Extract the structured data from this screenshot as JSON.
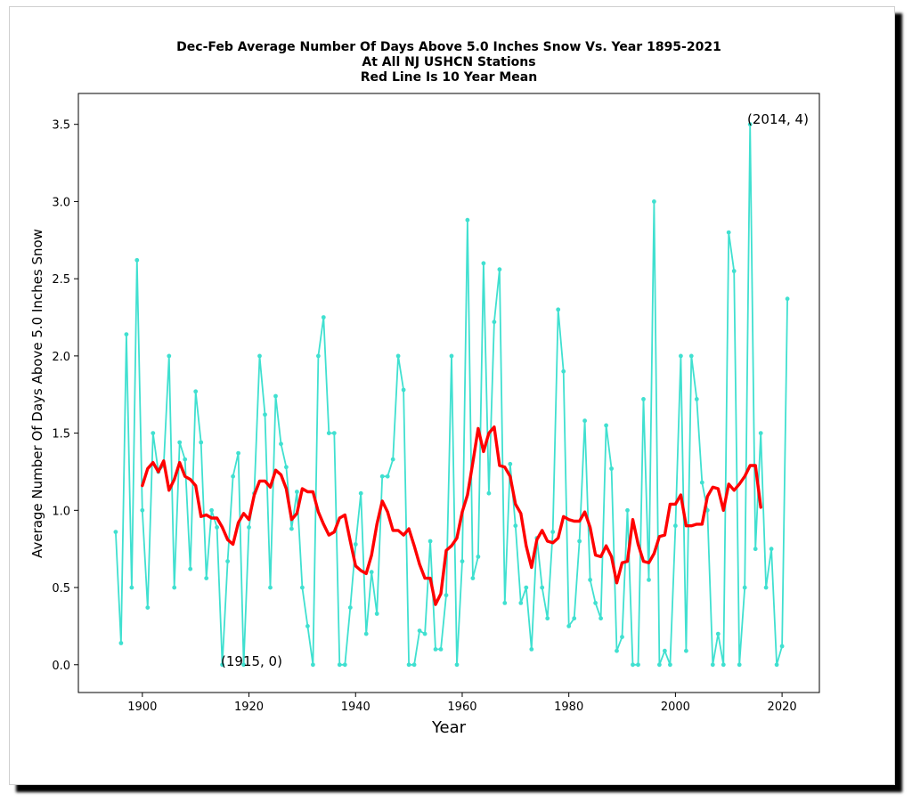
{
  "chart_data": {
    "type": "line",
    "title": [
      "Dec-Feb Average Number Of Days Above 5.0 Inches Snow Vs. Year 1895-2021",
      "At All NJ USHCN Stations",
      "Red Line Is 10 Year Mean"
    ],
    "xlabel": "Year",
    "ylabel": "Average Number Of Days Above 5.0 Inches Snow",
    "xlim": [
      1888,
      2027
    ],
    "ylim": [
      -0.18,
      3.7
    ],
    "xticks": [
      1900,
      1920,
      1940,
      1960,
      1980,
      2000,
      2020
    ],
    "yticks": [
      0.0,
      0.5,
      1.0,
      1.5,
      2.0,
      2.5,
      3.0,
      3.5
    ],
    "xtick_labels": [
      "1900",
      "1920",
      "1940",
      "1960",
      "1980",
      "2000",
      "2020"
    ],
    "ytick_labels": [
      "0.0",
      "0.5",
      "1.0",
      "1.5",
      "2.0",
      "2.5",
      "3.0",
      "3.5"
    ],
    "grid": false,
    "colors": {
      "yearly": "#40e0d0",
      "mean": "#ff0000"
    },
    "series": [
      {
        "type": "line-markers",
        "x": [
          1895,
          1896,
          1897,
          1898,
          1899,
          1900,
          1901,
          1902,
          1903,
          1904,
          1905,
          1906,
          1907,
          1908,
          1909,
          1910,
          1911,
          1912,
          1913,
          1914,
          1915,
          1916,
          1917,
          1918,
          1919,
          1920,
          1921,
          1922,
          1923,
          1924,
          1925,
          1926,
          1927,
          1928,
          1929,
          1930,
          1931,
          1932,
          1933,
          1934,
          1935,
          1936,
          1937,
          1938,
          1939,
          1940,
          1941,
          1942,
          1943,
          1944,
          1945,
          1946,
          1947,
          1948,
          1949,
          1950,
          1951,
          1952,
          1953,
          1954,
          1955,
          1956,
          1957,
          1958,
          1959,
          1960,
          1961,
          1962,
          1963,
          1964,
          1965,
          1966,
          1967,
          1968,
          1969,
          1970,
          1971,
          1972,
          1973,
          1974,
          1975,
          1976,
          1977,
          1978,
          1979,
          1980,
          1981,
          1982,
          1983,
          1984,
          1985,
          1986,
          1987,
          1988,
          1989,
          1990,
          1991,
          1992,
          1993,
          1994,
          1995,
          1996,
          1997,
          1998,
          1999,
          2000,
          2001,
          2002,
          2003,
          2004,
          2005,
          2006,
          2007,
          2008,
          2009,
          2010,
          2011,
          2012,
          2013,
          2014,
          2015,
          2016,
          2017,
          2018,
          2019,
          2020,
          2021
        ],
        "y": [
          0.86,
          0.14,
          2.14,
          0.5,
          2.62,
          1.0,
          0.37,
          1.5,
          1.25,
          1.29,
          2.0,
          0.5,
          1.44,
          1.33,
          0.62,
          1.77,
          1.44,
          0.56,
          1.0,
          0.89,
          0.0,
          0.67,
          1.22,
          1.37,
          0.0,
          0.89,
          1.11,
          2.0,
          1.62,
          0.5,
          1.74,
          1.43,
          1.28,
          0.88,
          1.12,
          0.5,
          0.25,
          0.0,
          2.0,
          2.25,
          1.5,
          1.5,
          0.0,
          0.0,
          0.37,
          0.78,
          1.11,
          0.2,
          0.6,
          0.33,
          1.22,
          1.22,
          1.33,
          2.0,
          1.78,
          0.0,
          0.0,
          0.22,
          0.2,
          0.8,
          0.1,
          0.1,
          0.45,
          2.0,
          0.0,
          0.67,
          2.88,
          0.56,
          0.7,
          2.6,
          1.11,
          2.22,
          2.56,
          0.4,
          1.3,
          0.9,
          0.4,
          0.5,
          0.1,
          0.82,
          0.5,
          0.3,
          0.86,
          2.3,
          1.9,
          0.25,
          0.3,
          0.8,
          1.58,
          0.55,
          0.4,
          0.3,
          1.55,
          1.27,
          0.09,
          0.18,
          1.0,
          0.0,
          0.0,
          1.72,
          0.55,
          3.0,
          0.0,
          0.09,
          0.0,
          0.9,
          2.0,
          0.09,
          2.0,
          1.72,
          1.18,
          1.0,
          0.0,
          0.2,
          0.0,
          2.8,
          2.55,
          0.0,
          0.5,
          3.5,
          0.75,
          1.5,
          0.5,
          0.75,
          0.0,
          0.12,
          2.37
        ]
      },
      {
        "type": "line",
        "x": [
          1900,
          1901,
          1902,
          1903,
          1904,
          1905,
          1906,
          1907,
          1908,
          1909,
          1910,
          1911,
          1912,
          1913,
          1914,
          1915,
          1916,
          1917,
          1918,
          1919,
          1920,
          1921,
          1922,
          1923,
          1924,
          1925,
          1926,
          1927,
          1928,
          1929,
          1930,
          1931,
          1932,
          1933,
          1934,
          1935,
          1936,
          1937,
          1938,
          1939,
          1940,
          1941,
          1942,
          1943,
          1944,
          1945,
          1946,
          1947,
          1948,
          1949,
          1950,
          1951,
          1952,
          1953,
          1954,
          1955,
          1956,
          1957,
          1958,
          1959,
          1960,
          1961,
          1962,
          1963,
          1964,
          1965,
          1966,
          1967,
          1968,
          1969,
          1970,
          1971,
          1972,
          1973,
          1974,
          1975,
          1976,
          1977,
          1978,
          1979,
          1980,
          1981,
          1982,
          1983,
          1984,
          1985,
          1986,
          1987,
          1988,
          1989,
          1990,
          1991,
          1992,
          1993,
          1994,
          1995,
          1996,
          1997,
          1998,
          1999,
          2000,
          2001,
          2002,
          2003,
          2004,
          2005,
          2006,
          2007,
          2008,
          2009,
          2010,
          2011,
          2012,
          2013,
          2014,
          2015,
          2016
        ],
        "y": [
          1.16,
          1.27,
          1.31,
          1.25,
          1.32,
          1.13,
          1.2,
          1.31,
          1.22,
          1.2,
          1.16,
          0.96,
          0.97,
          0.95,
          0.95,
          0.89,
          0.81,
          0.78,
          0.92,
          0.98,
          0.94,
          1.1,
          1.19,
          1.19,
          1.15,
          1.26,
          1.23,
          1.14,
          0.94,
          0.98,
          1.14,
          1.12,
          1.12,
          0.99,
          0.91,
          0.84,
          0.86,
          0.95,
          0.97,
          0.8,
          0.64,
          0.61,
          0.59,
          0.71,
          0.91,
          1.06,
          0.99,
          0.87,
          0.87,
          0.84,
          0.88,
          0.77,
          0.65,
          0.56,
          0.56,
          0.39,
          0.46,
          0.74,
          0.77,
          0.82,
          0.99,
          1.1,
          1.31,
          1.53,
          1.38,
          1.5,
          1.54,
          1.29,
          1.28,
          1.22,
          1.04,
          0.98,
          0.77,
          0.63,
          0.81,
          0.87,
          0.8,
          0.79,
          0.82,
          0.96,
          0.94,
          0.93,
          0.93,
          0.99,
          0.89,
          0.71,
          0.7,
          0.77,
          0.7,
          0.53,
          0.66,
          0.67,
          0.94,
          0.78,
          0.67,
          0.66,
          0.72,
          0.83,
          0.84,
          1.04,
          1.04,
          1.1,
          0.9,
          0.9,
          0.91,
          0.91,
          1.09,
          1.15,
          1.14,
          1.0,
          1.17,
          1.13,
          1.17,
          1.22,
          1.29,
          1.29,
          1.02
        ]
      }
    ],
    "annotations": [
      "(2014, 4)",
      "(1915, 0)"
    ]
  }
}
